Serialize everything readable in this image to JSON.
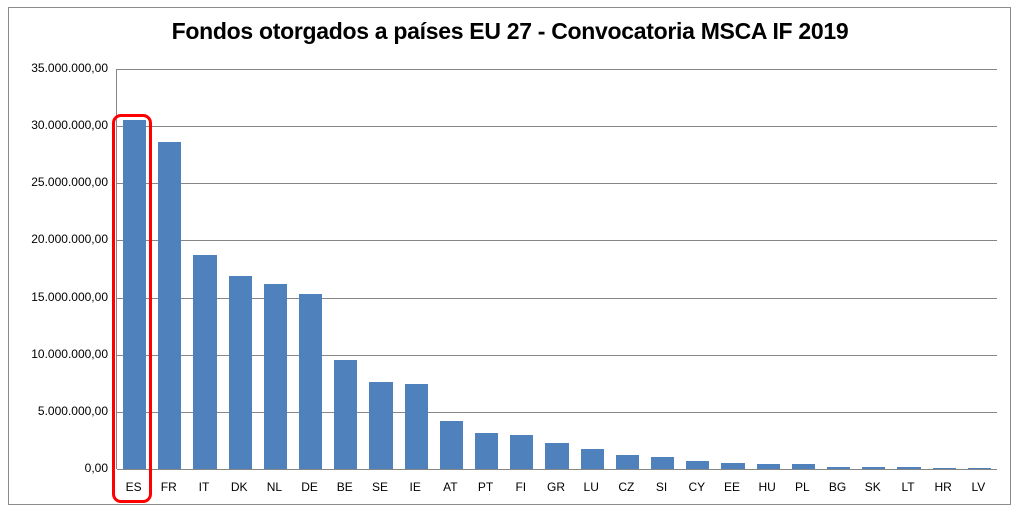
{
  "chart_data": {
    "type": "bar",
    "title": "Fondos otorgados a países EU 27 - Convocatoria MSCA IF 2019",
    "xlabel": "",
    "ylabel": "",
    "ylim": [
      0,
      35000000
    ],
    "yticks": [
      "0,00",
      "5.000.000,00",
      "10.000.000,00",
      "15.000.000,00",
      "20.000.000,00",
      "25.000.000,00",
      "30.000.000,00",
      "35.000.000,00"
    ],
    "grid": true,
    "legend": "none",
    "categories": [
      "ES",
      "FR",
      "IT",
      "DK",
      "NL",
      "DE",
      "BE",
      "SE",
      "IE",
      "AT",
      "PT",
      "FI",
      "GR",
      "LU",
      "CZ",
      "SI",
      "CY",
      "EE",
      "HU",
      "PL",
      "BG",
      "SK",
      "LT",
      "HR",
      "LV"
    ],
    "values": [
      30500000,
      28600000,
      18700000,
      16900000,
      16200000,
      15300000,
      9500000,
      7600000,
      7400000,
      4200000,
      3150000,
      3000000,
      2300000,
      1750000,
      1250000,
      1050000,
      700000,
      550000,
      450000,
      450000,
      200000,
      200000,
      200000,
      120000,
      120000
    ],
    "bar_color": "#4f81bd",
    "annotations": [
      {
        "type": "highlight-box",
        "category": "ES",
        "color": "#ff0000"
      }
    ]
  }
}
